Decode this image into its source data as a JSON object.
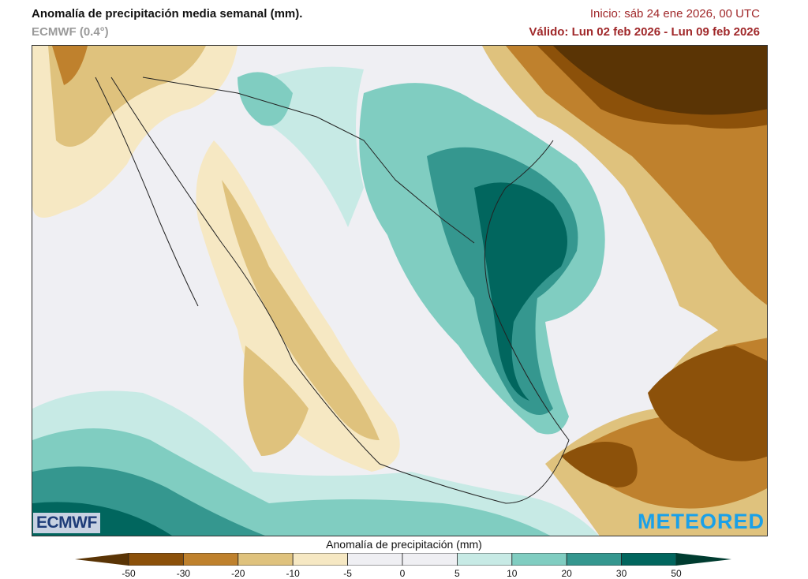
{
  "header": {
    "title": "Anomalía de precipitación media semanal (mm).",
    "model": "ECMWF (0.4°)",
    "init": "Inicio:  sáb 24 ene 2026, 00 UTC",
    "valid": "Válido: Lun 02 feb 2026 - Lun 09 feb 2026"
  },
  "logos": {
    "left": "ECMWF",
    "right": "METEORED"
  },
  "legend": {
    "title": "Anomalía de precipitación (mm)",
    "ticks": [
      "-50",
      "-30",
      "-20",
      "-10",
      "-5",
      "0",
      "5",
      "10",
      "20",
      "30",
      "50"
    ],
    "colors": [
      "#5a3405",
      "#8c510a",
      "#bf812d",
      "#dfc27d",
      "#f6e8c3",
      "#efeff3",
      "#efeff3",
      "#c7eae5",
      "#80cdc1",
      "#35978f",
      "#01665e",
      "#003c30"
    ]
  }
}
